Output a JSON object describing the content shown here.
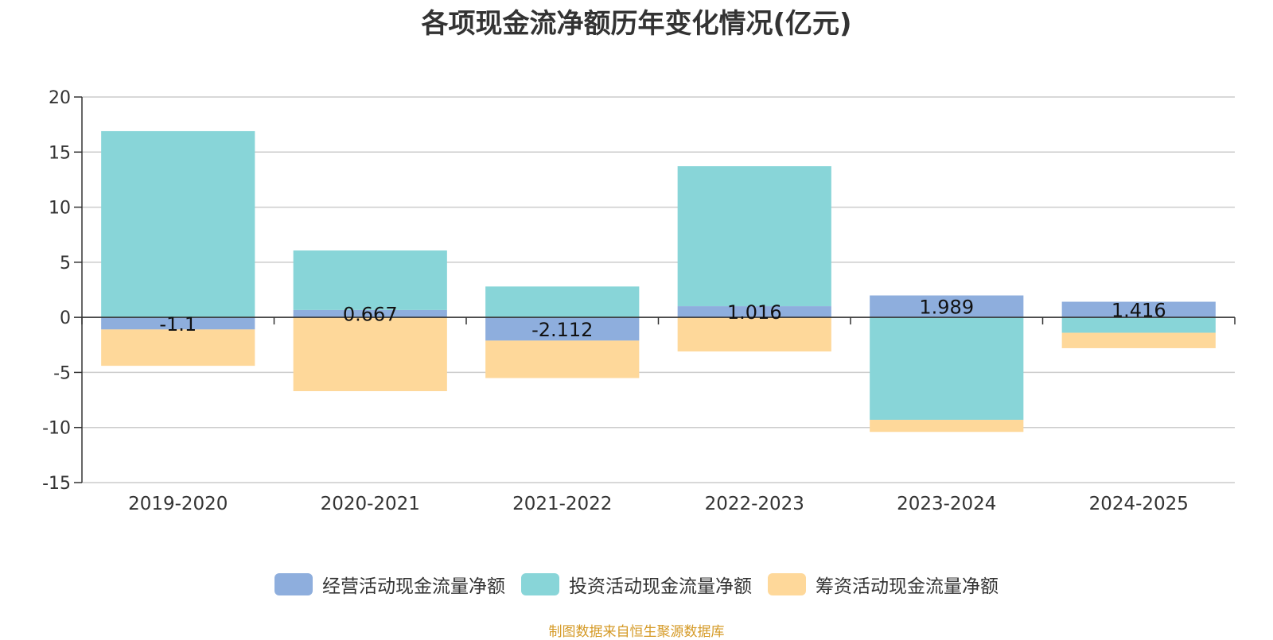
{
  "chart_data": {
    "type": "bar",
    "stacked": true,
    "title": "各项现金流净额历年变化情况(亿元)",
    "categories": [
      "2019-2020",
      "2020-2021",
      "2021-2022",
      "2022-2023",
      "2023-2024",
      "2024-2025"
    ],
    "ylim": [
      -15,
      20
    ],
    "yticks": [
      20,
      15,
      10,
      5,
      0,
      -5,
      -10,
      -15
    ],
    "grid": true,
    "legend_position": "bottom",
    "series": [
      {
        "name": "经营活动现金流量净额",
        "color": "#8eaedd",
        "values": [
          -1.1,
          0.667,
          -2.112,
          1.016,
          1.989,
          1.416
        ],
        "labels": [
          "-1.1",
          "0.667",
          "-2.112",
          "1.016",
          "1.989",
          "1.416"
        ]
      },
      {
        "name": "投资活动现金流量净额",
        "color": "#88d5d8",
        "values": [
          16.9,
          5.4,
          2.8,
          12.7,
          -9.3,
          -1.4
        ]
      },
      {
        "name": "筹资活动现金流量净额",
        "color": "#fed89a",
        "values": [
          -3.3,
          -6.7,
          -3.4,
          -3.1,
          -1.1,
          -1.4
        ]
      }
    ]
  },
  "source_note": "制图数据来自恒生聚源数据库"
}
